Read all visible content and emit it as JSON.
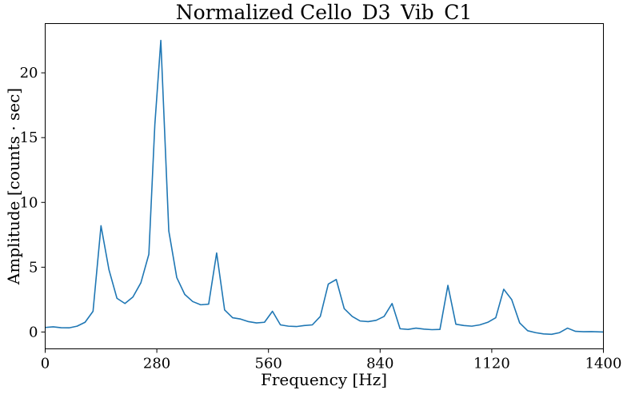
{
  "chart_data": {
    "type": "line",
    "title": "Normalized Cello_D3_Vib_C1",
    "xlabel": "Frequency [Hz]",
    "ylabel": "Amplitude [counts · sec]",
    "xlim": [
      0,
      1400
    ],
    "ylim": [
      -1.3,
      23.8
    ],
    "xticks": [
      0,
      280,
      560,
      840,
      1120,
      1400
    ],
    "yticks": [
      0,
      5,
      10,
      15,
      20
    ],
    "grid": false,
    "series": [
      {
        "color": "#1f77b4",
        "x": [
          0,
          20,
          40,
          60,
          80,
          100,
          120,
          140,
          160,
          180,
          200,
          220,
          240,
          260,
          275,
          290,
          310,
          330,
          350,
          370,
          390,
          410,
          430,
          450,
          470,
          490,
          510,
          530,
          550,
          570,
          590,
          610,
          630,
          650,
          670,
          690,
          710,
          730,
          750,
          770,
          790,
          810,
          830,
          850,
          870,
          890,
          910,
          930,
          950,
          970,
          990,
          1010,
          1030,
          1050,
          1070,
          1090,
          1110,
          1130,
          1150,
          1170,
          1190,
          1210,
          1230,
          1250,
          1270,
          1290,
          1310,
          1330,
          1350,
          1370,
          1400
        ],
        "y": [
          0.35,
          0.4,
          0.33,
          0.32,
          0.45,
          0.75,
          1.6,
          8.2,
          4.8,
          2.6,
          2.2,
          2.7,
          3.8,
          6.0,
          16.0,
          22.5,
          7.8,
          4.2,
          2.9,
          2.35,
          2.1,
          2.15,
          6.1,
          1.7,
          1.1,
          1.0,
          0.8,
          0.7,
          0.75,
          1.6,
          0.55,
          0.45,
          0.42,
          0.5,
          0.55,
          1.2,
          3.7,
          4.05,
          1.8,
          1.2,
          0.85,
          0.8,
          0.9,
          1.2,
          2.2,
          0.25,
          0.2,
          0.3,
          0.22,
          0.18,
          0.2,
          3.6,
          0.6,
          0.5,
          0.45,
          0.55,
          0.75,
          1.1,
          3.3,
          2.5,
          0.7,
          0.1,
          -0.05,
          -0.15,
          -0.18,
          -0.05,
          0.3,
          0.05,
          0.02,
          0.03,
          0.0
        ]
      }
    ]
  }
}
